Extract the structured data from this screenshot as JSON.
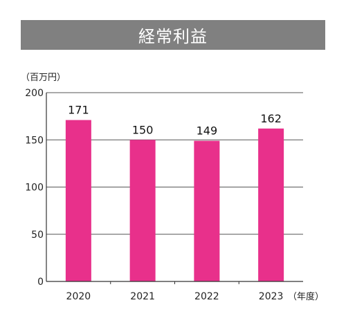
{
  "chart_data": {
    "type": "bar",
    "title": "経常利益",
    "ylabel": "（百万円）",
    "xlabel": "（年度）",
    "categories": [
      "2020",
      "2021",
      "2022",
      "2023"
    ],
    "values": [
      171,
      150,
      149,
      162
    ],
    "data_labels": [
      "171",
      "150",
      "149",
      "162"
    ],
    "ylim": [
      0,
      200
    ],
    "yticks": [
      0,
      50,
      100,
      150,
      200
    ],
    "grid": true,
    "bar_color": "#e8308b"
  }
}
